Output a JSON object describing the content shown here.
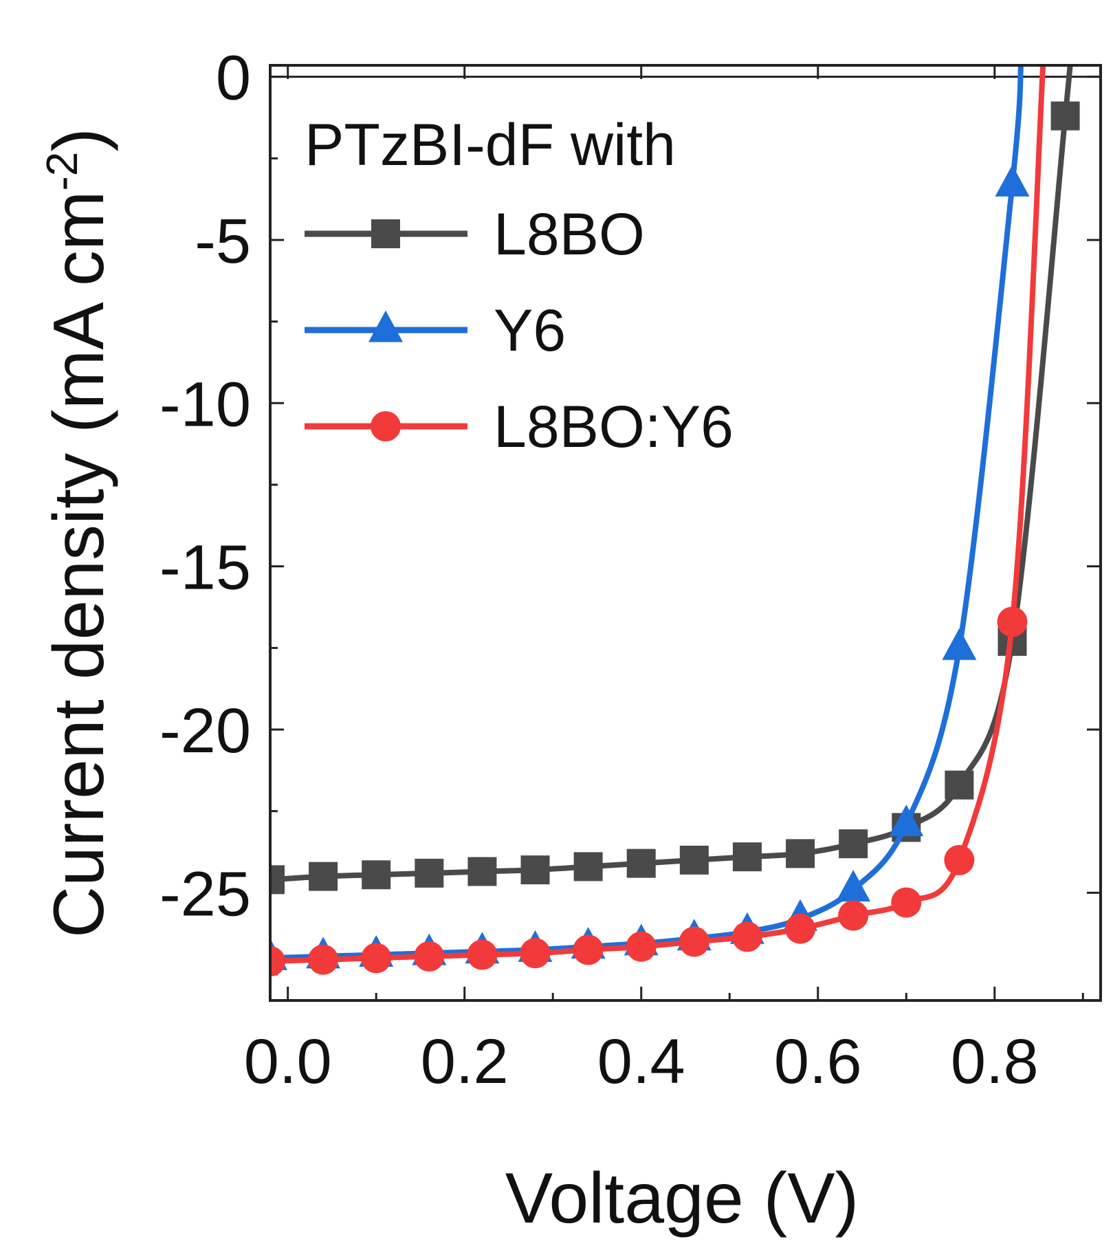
{
  "chart_data": {
    "type": "line",
    "title": "",
    "xlabel": "Voltage (V)",
    "ylabel_main": "Current density (mA cm",
    "ylabel_sup": "-2",
    "ylabel_close": ")",
    "xlim": [
      -0.02,
      0.92
    ],
    "ylim": [
      -28.3,
      0.35
    ],
    "x_ticks": [
      0.0,
      0.2,
      0.4,
      0.6,
      0.8
    ],
    "x_tick_labels": [
      "0.0",
      "0.2",
      "0.4",
      "0.6",
      "0.8"
    ],
    "x_minor_ticks": [
      0.1,
      0.3,
      0.5,
      0.7,
      0.9
    ],
    "y_ticks": [
      0,
      -5,
      -10,
      -15,
      -20,
      -25
    ],
    "y_tick_labels": [
      "0",
      "-5",
      "-10",
      "-15",
      "-20",
      "-25"
    ],
    "y_minor_ticks": [
      -2.5,
      -7.5,
      -12.5,
      -17.5,
      -22.5,
      -27.5
    ],
    "zero_line": 0,
    "legend": {
      "title": "PTzBI-dF with",
      "position": "top-left"
    },
    "series": [
      {
        "name": "L8BO",
        "color": "#4a4a4a",
        "marker": "square",
        "x": [
          -0.02,
          0.04,
          0.1,
          0.16,
          0.22,
          0.28,
          0.34,
          0.4,
          0.46,
          0.52,
          0.58,
          0.64,
          0.7,
          0.76,
          0.82,
          0.88,
          0.885
        ],
        "y": [
          -24.6,
          -24.5,
          -24.45,
          -24.4,
          -24.35,
          -24.3,
          -24.2,
          -24.1,
          -24.0,
          -23.9,
          -23.8,
          -23.5,
          -23.0,
          -21.7,
          -17.3,
          -1.2,
          0.5
        ]
      },
      {
        "name": "Y6",
        "color": "#1e6fd9",
        "marker": "triangle",
        "x": [
          -0.02,
          0.04,
          0.1,
          0.16,
          0.22,
          0.28,
          0.34,
          0.4,
          0.46,
          0.52,
          0.58,
          0.64,
          0.7,
          0.76,
          0.82,
          0.83
        ],
        "y": [
          -27.0,
          -26.95,
          -26.9,
          -26.85,
          -26.8,
          -26.75,
          -26.65,
          -26.55,
          -26.4,
          -26.2,
          -25.8,
          -24.9,
          -22.9,
          -17.5,
          -3.3,
          0.5
        ]
      },
      {
        "name": "L8BO:Y6",
        "color": "#f23a3a",
        "marker": "circle",
        "x": [
          -0.02,
          0.04,
          0.1,
          0.16,
          0.22,
          0.28,
          0.34,
          0.4,
          0.46,
          0.52,
          0.58,
          0.64,
          0.7,
          0.76,
          0.82,
          0.855
        ],
        "y": [
          -27.1,
          -27.05,
          -27.0,
          -26.95,
          -26.9,
          -26.85,
          -26.75,
          -26.65,
          -26.5,
          -26.35,
          -26.1,
          -25.7,
          -25.3,
          -24.0,
          -16.7,
          0.5
        ]
      }
    ]
  }
}
